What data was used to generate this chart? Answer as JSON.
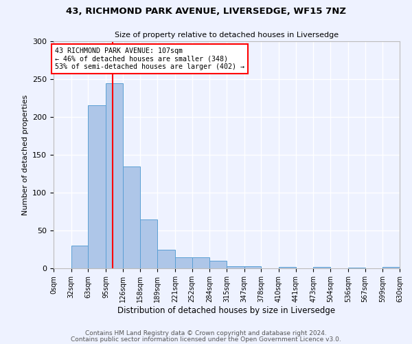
{
  "title1": "43, RICHMOND PARK AVENUE, LIVERSEDGE, WF15 7NZ",
  "title2": "Size of property relative to detached houses in Liversedge",
  "xlabel": "Distribution of detached houses by size in Liversedge",
  "ylabel": "Number of detached properties",
  "bin_edges": [
    0,
    32,
    63,
    95,
    126,
    158,
    189,
    221,
    252,
    284,
    315,
    347,
    378,
    410,
    441,
    473,
    504,
    536,
    567,
    599,
    630
  ],
  "bin_labels": [
    "0sqm",
    "32sqm",
    "63sqm",
    "95sqm",
    "126sqm",
    "158sqm",
    "189sqm",
    "221sqm",
    "252sqm",
    "284sqm",
    "315sqm",
    "347sqm",
    "378sqm",
    "410sqm",
    "441sqm",
    "473sqm",
    "504sqm",
    "536sqm",
    "567sqm",
    "599sqm",
    "630sqm"
  ],
  "counts": [
    0,
    30,
    215,
    245,
    135,
    65,
    25,
    15,
    15,
    10,
    3,
    3,
    0,
    2,
    0,
    2,
    0,
    1,
    0,
    2
  ],
  "bar_color": "#aec6e8",
  "bar_edge_color": "#5a9fd4",
  "red_line_x": 107,
  "ylim": [
    0,
    300
  ],
  "yticks": [
    0,
    50,
    100,
    150,
    200,
    250,
    300
  ],
  "annotation_text": "43 RICHMOND PARK AVENUE: 107sqm\n← 46% of detached houses are smaller (348)\n53% of semi-detached houses are larger (402) →",
  "annotation_box_color": "white",
  "annotation_box_edge_color": "red",
  "footer1": "Contains HM Land Registry data © Crown copyright and database right 2024.",
  "footer2": "Contains public sector information licensed under the Open Government Licence v3.0.",
  "background_color": "#eef2ff"
}
